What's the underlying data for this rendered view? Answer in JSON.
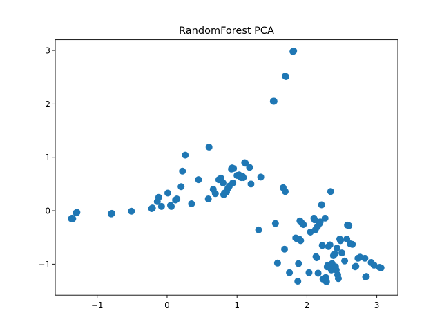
{
  "chart_data": {
    "type": "scatter",
    "title": "RandomForest PCA",
    "xlabel": "",
    "ylabel": "",
    "xlim": [
      -1.6,
      3.3
    ],
    "ylim": [
      -1.58,
      3.2
    ],
    "xticks": [
      -1,
      0,
      1,
      2,
      3
    ],
    "xtick_labels": [
      "−1",
      "0",
      "1",
      "2",
      "3"
    ],
    "yticks": [
      -1,
      0,
      1,
      2,
      3
    ],
    "ytick_labels": [
      "−1",
      "0",
      "1",
      "2",
      "3"
    ],
    "grid": false,
    "legend": "none",
    "point_color": "#1f77b4",
    "series": [
      {
        "x": [
          -1.37,
          -1.36,
          -1.35,
          -1.3,
          -1.29,
          -0.8,
          -0.79,
          -0.51,
          -0.22,
          -0.21,
          -0.14,
          -0.12,
          -0.08,
          0.01,
          0.05,
          0.06,
          0.12,
          0.14,
          0.2,
          0.22,
          0.26,
          0.35,
          0.45,
          0.59,
          0.6,
          0.66,
          0.69,
          0.74,
          0.77,
          0.8,
          0.81,
          0.82,
          0.85,
          0.87,
          0.89,
          0.92,
          0.93,
          0.94,
          0.95,
          1.0,
          1.03,
          1.06,
          1.08,
          1.09,
          1.11,
          1.12,
          1.18,
          1.2,
          1.34,
          1.52,
          1.53,
          1.69,
          1.7,
          1.8,
          1.81,
          1.31,
          1.55,
          1.58,
          1.66,
          1.68,
          1.69,
          1.75,
          1.84,
          1.85,
          1.87,
          1.88,
          1.89,
          1.9,
          1.91,
          1.92,
          1.95,
          2.03,
          2.05,
          2.1,
          2.11,
          2.12,
          2.13,
          2.14,
          2.15,
          2.16,
          2.18,
          2.19,
          2.21,
          2.22,
          2.23,
          2.24,
          2.26,
          2.27,
          2.28,
          2.29,
          2.3,
          2.31,
          2.33,
          2.34,
          2.35,
          2.36,
          2.38,
          2.4,
          2.41,
          2.42,
          2.43,
          2.44,
          2.45,
          2.47,
          2.48,
          2.5,
          2.54,
          2.57,
          2.58,
          2.6,
          2.62,
          2.65,
          2.69,
          2.7,
          2.73,
          2.76,
          2.83,
          2.84,
          2.85,
          2.92,
          2.96,
          3.04,
          3.06
        ],
        "y": [
          -0.15,
          -0.14,
          -0.15,
          -0.04,
          -0.03,
          -0.06,
          -0.05,
          -0.01,
          0.04,
          0.05,
          0.17,
          0.25,
          0.08,
          0.33,
          0.1,
          0.08,
          0.2,
          0.22,
          0.45,
          0.74,
          1.04,
          0.13,
          0.58,
          0.22,
          1.19,
          0.4,
          0.32,
          0.58,
          0.61,
          0.52,
          0.3,
          0.33,
          0.35,
          0.42,
          0.46,
          0.78,
          0.8,
          0.52,
          0.79,
          0.66,
          0.67,
          0.62,
          0.64,
          0.62,
          0.9,
          0.89,
          0.81,
          0.5,
          0.63,
          2.05,
          2.05,
          2.52,
          2.51,
          2.98,
          2.99,
          -0.36,
          -0.24,
          -0.98,
          0.43,
          -0.72,
          0.36,
          -1.16,
          -0.51,
          -0.52,
          -1.32,
          -0.99,
          -0.53,
          -0.19,
          -0.56,
          -0.22,
          -0.26,
          -1.16,
          -0.4,
          -0.14,
          -0.17,
          -0.36,
          -0.86,
          -0.88,
          -0.3,
          -1.17,
          -0.24,
          -0.21,
          0.11,
          -0.65,
          -1.28,
          -1.27,
          -0.14,
          -1.25,
          -1.33,
          -1.05,
          -1.02,
          -0.67,
          -0.64,
          0.36,
          -1.11,
          -0.99,
          -0.84,
          -0.81,
          -1.05,
          -1.11,
          -0.7,
          -1.2,
          -1.27,
          -0.53,
          -0.56,
          -0.79,
          -0.94,
          -0.53,
          -0.27,
          -0.28,
          -0.62,
          -0.63,
          -1.05,
          -1.04,
          -0.89,
          -0.87,
          -0.89,
          -1.24,
          -1.23,
          -0.97,
          -1.02,
          -1.06,
          -1.07
        ]
      }
    ]
  }
}
